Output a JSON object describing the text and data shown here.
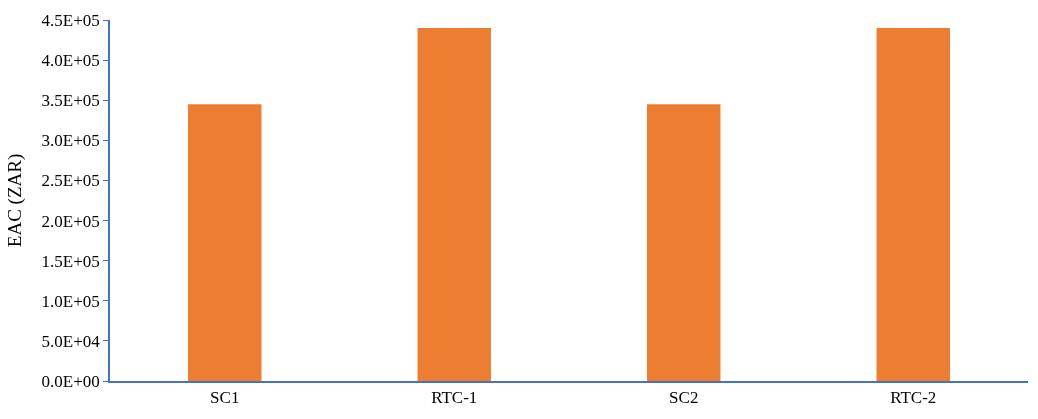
{
  "chart_data": {
    "type": "bar",
    "ylabel": "EAC (ZAR)",
    "categories": [
      "SC1",
      "RTC-1",
      "SC2",
      "RTC-2"
    ],
    "values": [
      345000,
      440000,
      345000,
      440000
    ],
    "color": "#ed7d31",
    "ylim": [
      0,
      450000
    ],
    "yticks": [
      {
        "value": 0,
        "label": "0.0E+00"
      },
      {
        "value": 50000,
        "label": "5.0E+04"
      },
      {
        "value": 100000,
        "label": "1.0E+05"
      },
      {
        "value": 150000,
        "label": "1.5E+05"
      },
      {
        "value": 200000,
        "label": "2.0E+05"
      },
      {
        "value": 250000,
        "label": "2.5E+05"
      },
      {
        "value": 300000,
        "label": "3.0E+05"
      },
      {
        "value": 350000,
        "label": "3.5E+05"
      },
      {
        "value": 400000,
        "label": "4.0E+05"
      },
      {
        "value": 450000,
        "label": "4.5E+05"
      }
    ],
    "legend": false
  }
}
